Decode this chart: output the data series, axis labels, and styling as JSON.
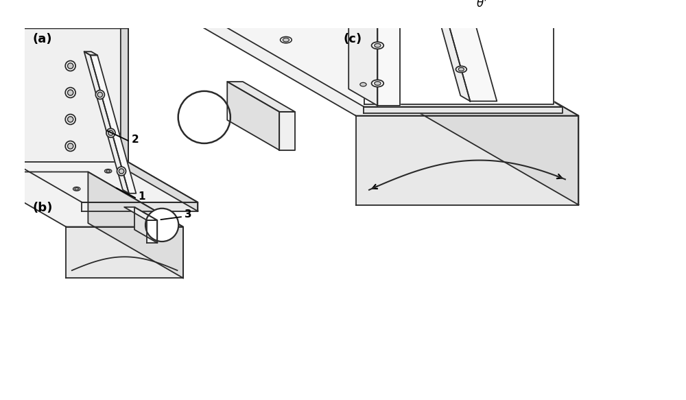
{
  "bg_color": "#ffffff",
  "line_color": "#2a2a2a",
  "line_width": 1.3,
  "label_a": "(a)",
  "label_b": "(b)",
  "label_c": "(c)",
  "label_1": "1",
  "label_2": "2",
  "label_3": "3",
  "theta_label": "θ’",
  "figsize": [
    10.0,
    5.83
  ],
  "dpi": 100
}
